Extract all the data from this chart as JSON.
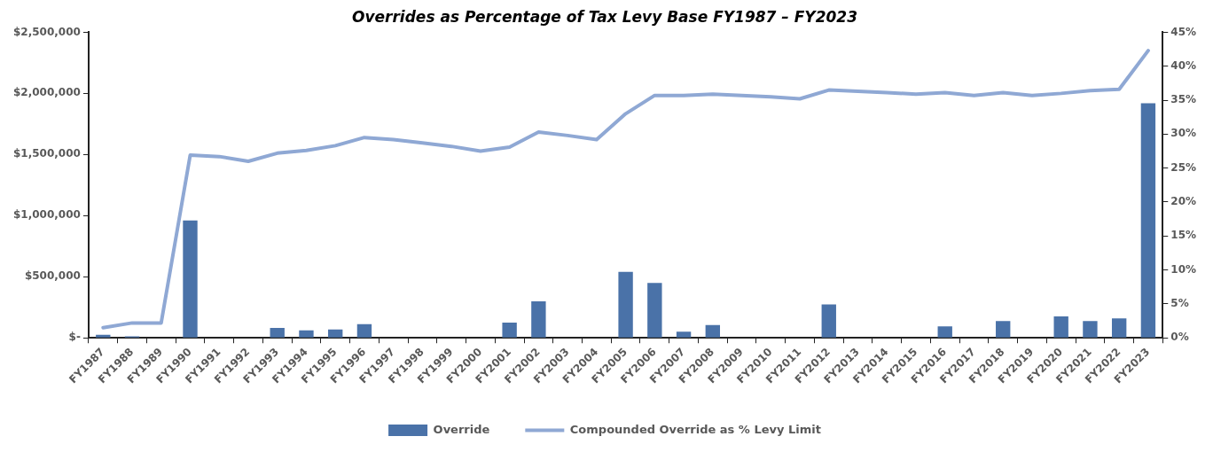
{
  "chart_data": {
    "type": "bar",
    "title": "Overrides as Percentage of Tax Levy Base FY1987 – FY2023",
    "categories": [
      "FY1987",
      "FY1988",
      "FY1989",
      "FY1990",
      "FY1991",
      "FY1992",
      "FY1993",
      "FY1994",
      "FY1995",
      "FY1996",
      "FY1997",
      "FY1998",
      "FY1999",
      "FY2000",
      "FY2001",
      "FY2002",
      "FY2003",
      "FY2004",
      "FY2005",
      "FY2006",
      "FY2007",
      "FY2008",
      "FY2009",
      "FY2010",
      "FY2011",
      "FY2012",
      "FY2013",
      "FY2014",
      "FY2015",
      "FY2016",
      "FY2017",
      "FY2018",
      "FY2019",
      "FY2020",
      "FY2021",
      "FY2022",
      "FY2023"
    ],
    "series": [
      {
        "name": "Override",
        "color": "#4a72a8",
        "values": [
          25000,
          12000,
          0,
          960000,
          0,
          0,
          81000,
          62000,
          69000,
          112000,
          0,
          0,
          0,
          0,
          125000,
          300000,
          0,
          0,
          540000,
          450000,
          50000,
          106000,
          0,
          0,
          0,
          274000,
          0,
          0,
          0,
          94000,
          0,
          137000,
          0,
          175000,
          137000,
          160000,
          1920000
        ]
      },
      {
        "name": "Compounded Override as % Levy Limit",
        "type": "line",
        "axis": "y2",
        "color": "#8fa8d4",
        "values": [
          1.5,
          2.2,
          2.2,
          26.9,
          26.7,
          26.0,
          27.2,
          27.6,
          28.3,
          29.5,
          29.2,
          28.7,
          28.2,
          27.5,
          28.1,
          30.3,
          29.8,
          29.2,
          33.0,
          35.7,
          35.7,
          35.9,
          35.7,
          35.5,
          35.2,
          36.5,
          36.3,
          36.1,
          35.9,
          36.1,
          35.7,
          36.1,
          35.7,
          36.0,
          36.4,
          36.6,
          42.3
        ]
      }
    ],
    "ylim": [
      0,
      2500000
    ],
    "yticks": [
      {
        "value": 0,
        "label": "$-"
      },
      {
        "value": 500000,
        "label": "$500,000"
      },
      {
        "value": 1000000,
        "label": "$1,000,000"
      },
      {
        "value": 1500000,
        "label": "$1,500,000"
      },
      {
        "value": 2000000,
        "label": "$2,000,000"
      },
      {
        "value": 2500000,
        "label": "$2,500,000"
      }
    ],
    "y2lim": [
      0,
      45
    ],
    "y2ticks": [
      {
        "value": 0,
        "label": "0%"
      },
      {
        "value": 5,
        "label": "5%"
      },
      {
        "value": 10,
        "label": "10%"
      },
      {
        "value": 15,
        "label": "15%"
      },
      {
        "value": 20,
        "label": "20%"
      },
      {
        "value": 25,
        "label": "25%"
      },
      {
        "value": 30,
        "label": "30%"
      },
      {
        "value": 35,
        "label": "35%"
      },
      {
        "value": 40,
        "label": "40%"
      },
      {
        "value": 45,
        "label": "45%"
      }
    ],
    "grid": false,
    "legend": "bottom",
    "marker": "none"
  }
}
